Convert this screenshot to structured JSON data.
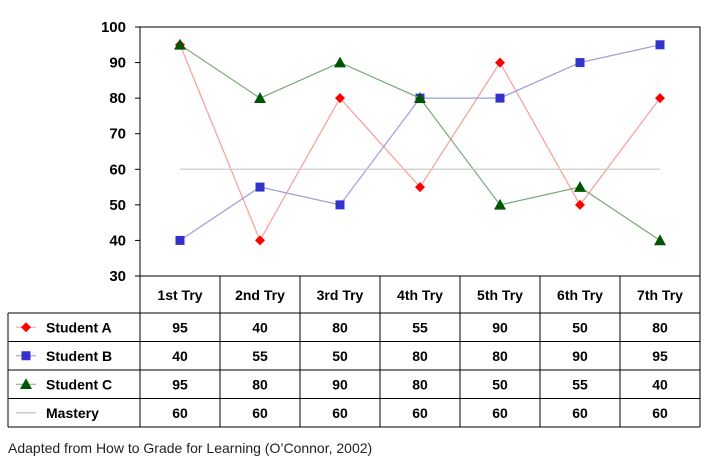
{
  "chart_data": {
    "type": "line",
    "categories": [
      "1st Try",
      "2nd Try",
      "3rd Try",
      "4th Try",
      "5th Try",
      "6th Try",
      "7th Try"
    ],
    "series": [
      {
        "name": "Student A",
        "values": [
          95,
          40,
          80,
          55,
          90,
          50,
          80
        ],
        "color": "#ff0000",
        "line_color": "#ff9a9a",
        "marker": "diamond"
      },
      {
        "name": "Student B",
        "values": [
          40,
          55,
          50,
          80,
          80,
          90,
          95
        ],
        "color": "#3333cc",
        "line_color": "#9c9cdc",
        "marker": "square"
      },
      {
        "name": "Student C",
        "values": [
          95,
          80,
          90,
          80,
          50,
          55,
          40
        ],
        "color": "#005500",
        "line_color": "#77aa77",
        "marker": "triangle"
      },
      {
        "name": "Mastery",
        "values": [
          60,
          60,
          60,
          60,
          60,
          60,
          60
        ],
        "color": "#cccccc",
        "line_color": "#cccccc",
        "marker": "none"
      }
    ],
    "y_ticks": [
      30,
      40,
      50,
      60,
      70,
      80,
      90,
      100
    ],
    "ylim": [
      30,
      100
    ],
    "legend": "data-table",
    "grid": false
  },
  "caption": "Adapted from How  to Grade for Learning (O’Connor, 2002)"
}
